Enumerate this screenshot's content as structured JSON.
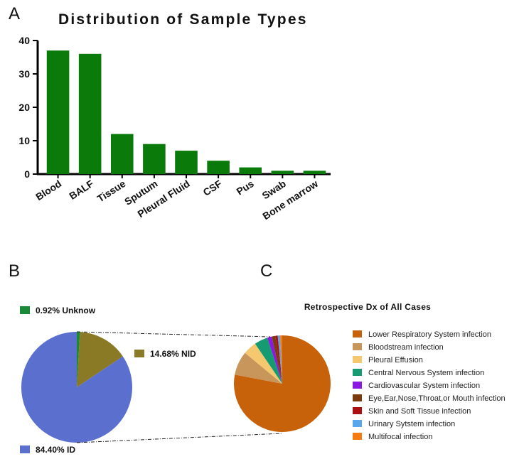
{
  "panels": {
    "a": "A",
    "b": "B",
    "c": "C"
  },
  "colors": {
    "bar": "#0a7a0a"
  },
  "chart_data": [
    {
      "type": "bar",
      "title": "Distribution of Sample Types",
      "categories": [
        "Blood",
        "BALF",
        "Tissue",
        "Sputum",
        "Pleural Fluid",
        "CSF",
        "Pus",
        "Swab",
        "Bone marrow"
      ],
      "values": [
        37,
        36,
        12,
        9,
        7,
        4,
        2,
        1,
        1
      ],
      "ylim": [
        0,
        40
      ],
      "yticks": [
        0,
        10,
        20,
        30,
        40
      ],
      "grid": false
    },
    {
      "type": "pie",
      "labels": [
        {
          "pct": "0.92%",
          "name": "Unknow"
        },
        {
          "pct": "14.68%",
          "name": "NID"
        },
        {
          "pct": "84.40%",
          "name": "ID"
        }
      ],
      "values": [
        0.92,
        14.68,
        84.4
      ],
      "colors": [
        "#1a8a3a",
        "#8a7a26",
        "#5b6fcf"
      ]
    },
    {
      "type": "pie",
      "title": "Retrospective Dx of All Cases",
      "categories": [
        "Lower Respiratory System infection",
        "Bloodstream infection",
        "Pleural Effusion",
        "Central Nervous System infection",
        "Cardiovascular System infection",
        "Eye,Ear,Nose,Throat,or Mouth infection",
        "Skin and Soft Tissue infection",
        "Urinary Sytstem infection",
        "Multifocal infection"
      ],
      "values": [
        78,
        8,
        4.5,
        4.5,
        1.5,
        1.2,
        0.8,
        0.8,
        0.7
      ],
      "colors": [
        "#c8620a",
        "#c8955a",
        "#f5c870",
        "#159a72",
        "#8a1adf",
        "#7a3a10",
        "#aa1010",
        "#5aa6ea",
        "#f57a10"
      ],
      "legend": "right"
    }
  ]
}
